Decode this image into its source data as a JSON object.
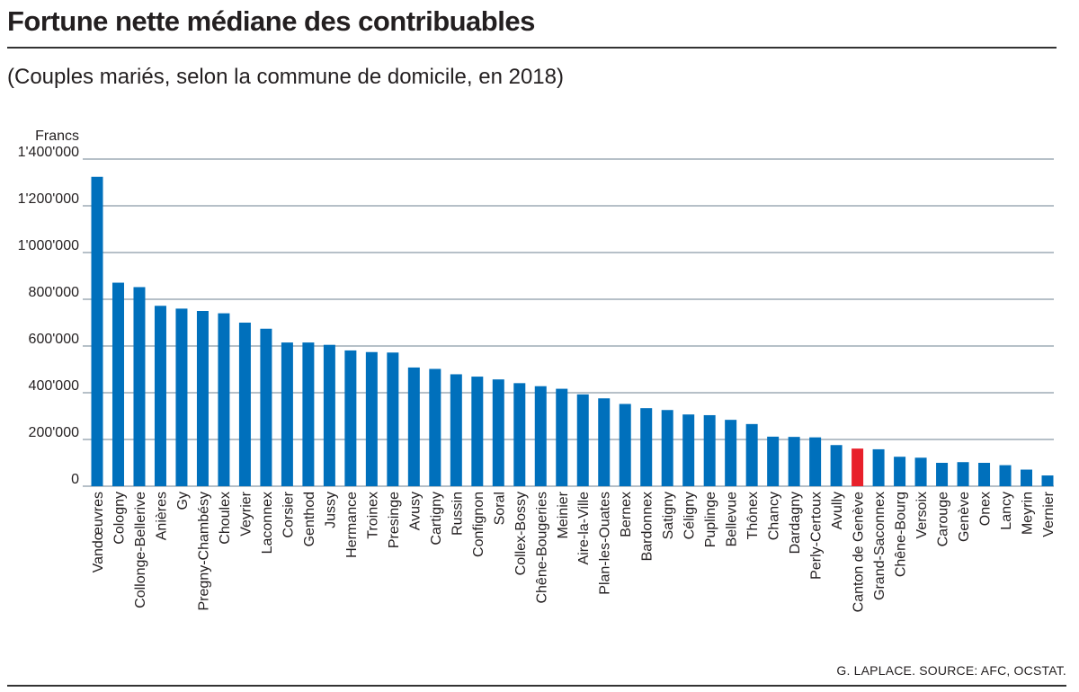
{
  "title": "Fortune nette médiane des contribuables",
  "subtitle": "(Couples mariés, selon la commune de domicile, en 2018)",
  "source": "G. LAPLACE. SOURCE: AFC, OCSTAT.",
  "colors": {
    "bar": "#0070bc",
    "highlight": "#e8202a",
    "grid": "#8a9aa8"
  },
  "chart_data": {
    "type": "bar",
    "title": "Fortune nette médiane des contribuables",
    "subtitle": "(Couples mariés, selon la commune de domicile, en 2018)",
    "ylabel": "Francs",
    "ylim": [
      0,
      1400000
    ],
    "yticks": [
      0,
      200000,
      400000,
      600000,
      800000,
      1000000,
      1200000,
      1400000
    ],
    "ytick_labels": [
      "0",
      "200'000",
      "400'000",
      "600'000",
      "800'000",
      "1'000'000",
      "1'200'000",
      "1'400'000"
    ],
    "grid": true,
    "highlight": "Canton de Genève",
    "categories": [
      "Vandœuvres",
      "Cologny",
      "Collonge-Bellerive",
      "Anières",
      "Gy",
      "Pregny-Chambésy",
      "Choulex",
      "Veyrier",
      "Laconnex",
      "Corsier",
      "Genthod",
      "Jussy",
      "Hermance",
      "Troinex",
      "Presinge",
      "Avusy",
      "Cartigny",
      "Russin",
      "Confignon",
      "Soral",
      "Collex-Bossy",
      "Chêne-Bougeries",
      "Meinier",
      "Aire-la-Ville",
      "Plan-les-Ouates",
      "Bernex",
      "Bardonnex",
      "Satigny",
      "Céligny",
      "Puplinge",
      "Bellevue",
      "Thônex",
      "Chancy",
      "Dardagny",
      "Perly-Certoux",
      "Avully",
      "Canton de Genève",
      "Grand-Saconnex",
      "Chêne-Bourg",
      "Versoix",
      "Carouge",
      "Genève",
      "Onex",
      "Lancy",
      "Meyrin",
      "Vernier"
    ],
    "values": [
      1324000,
      871000,
      852000,
      772000,
      760000,
      750000,
      740000,
      700000,
      674000,
      615000,
      615000,
      605000,
      581000,
      574000,
      572000,
      508000,
      502000,
      479000,
      469000,
      457000,
      441000,
      428000,
      417000,
      393000,
      376000,
      352000,
      334000,
      326000,
      307000,
      304000,
      284000,
      266000,
      212000,
      211000,
      209000,
      176000,
      161000,
      158000,
      126000,
      122000,
      100000,
      103000,
      100000,
      90000,
      71000,
      46000
    ]
  }
}
